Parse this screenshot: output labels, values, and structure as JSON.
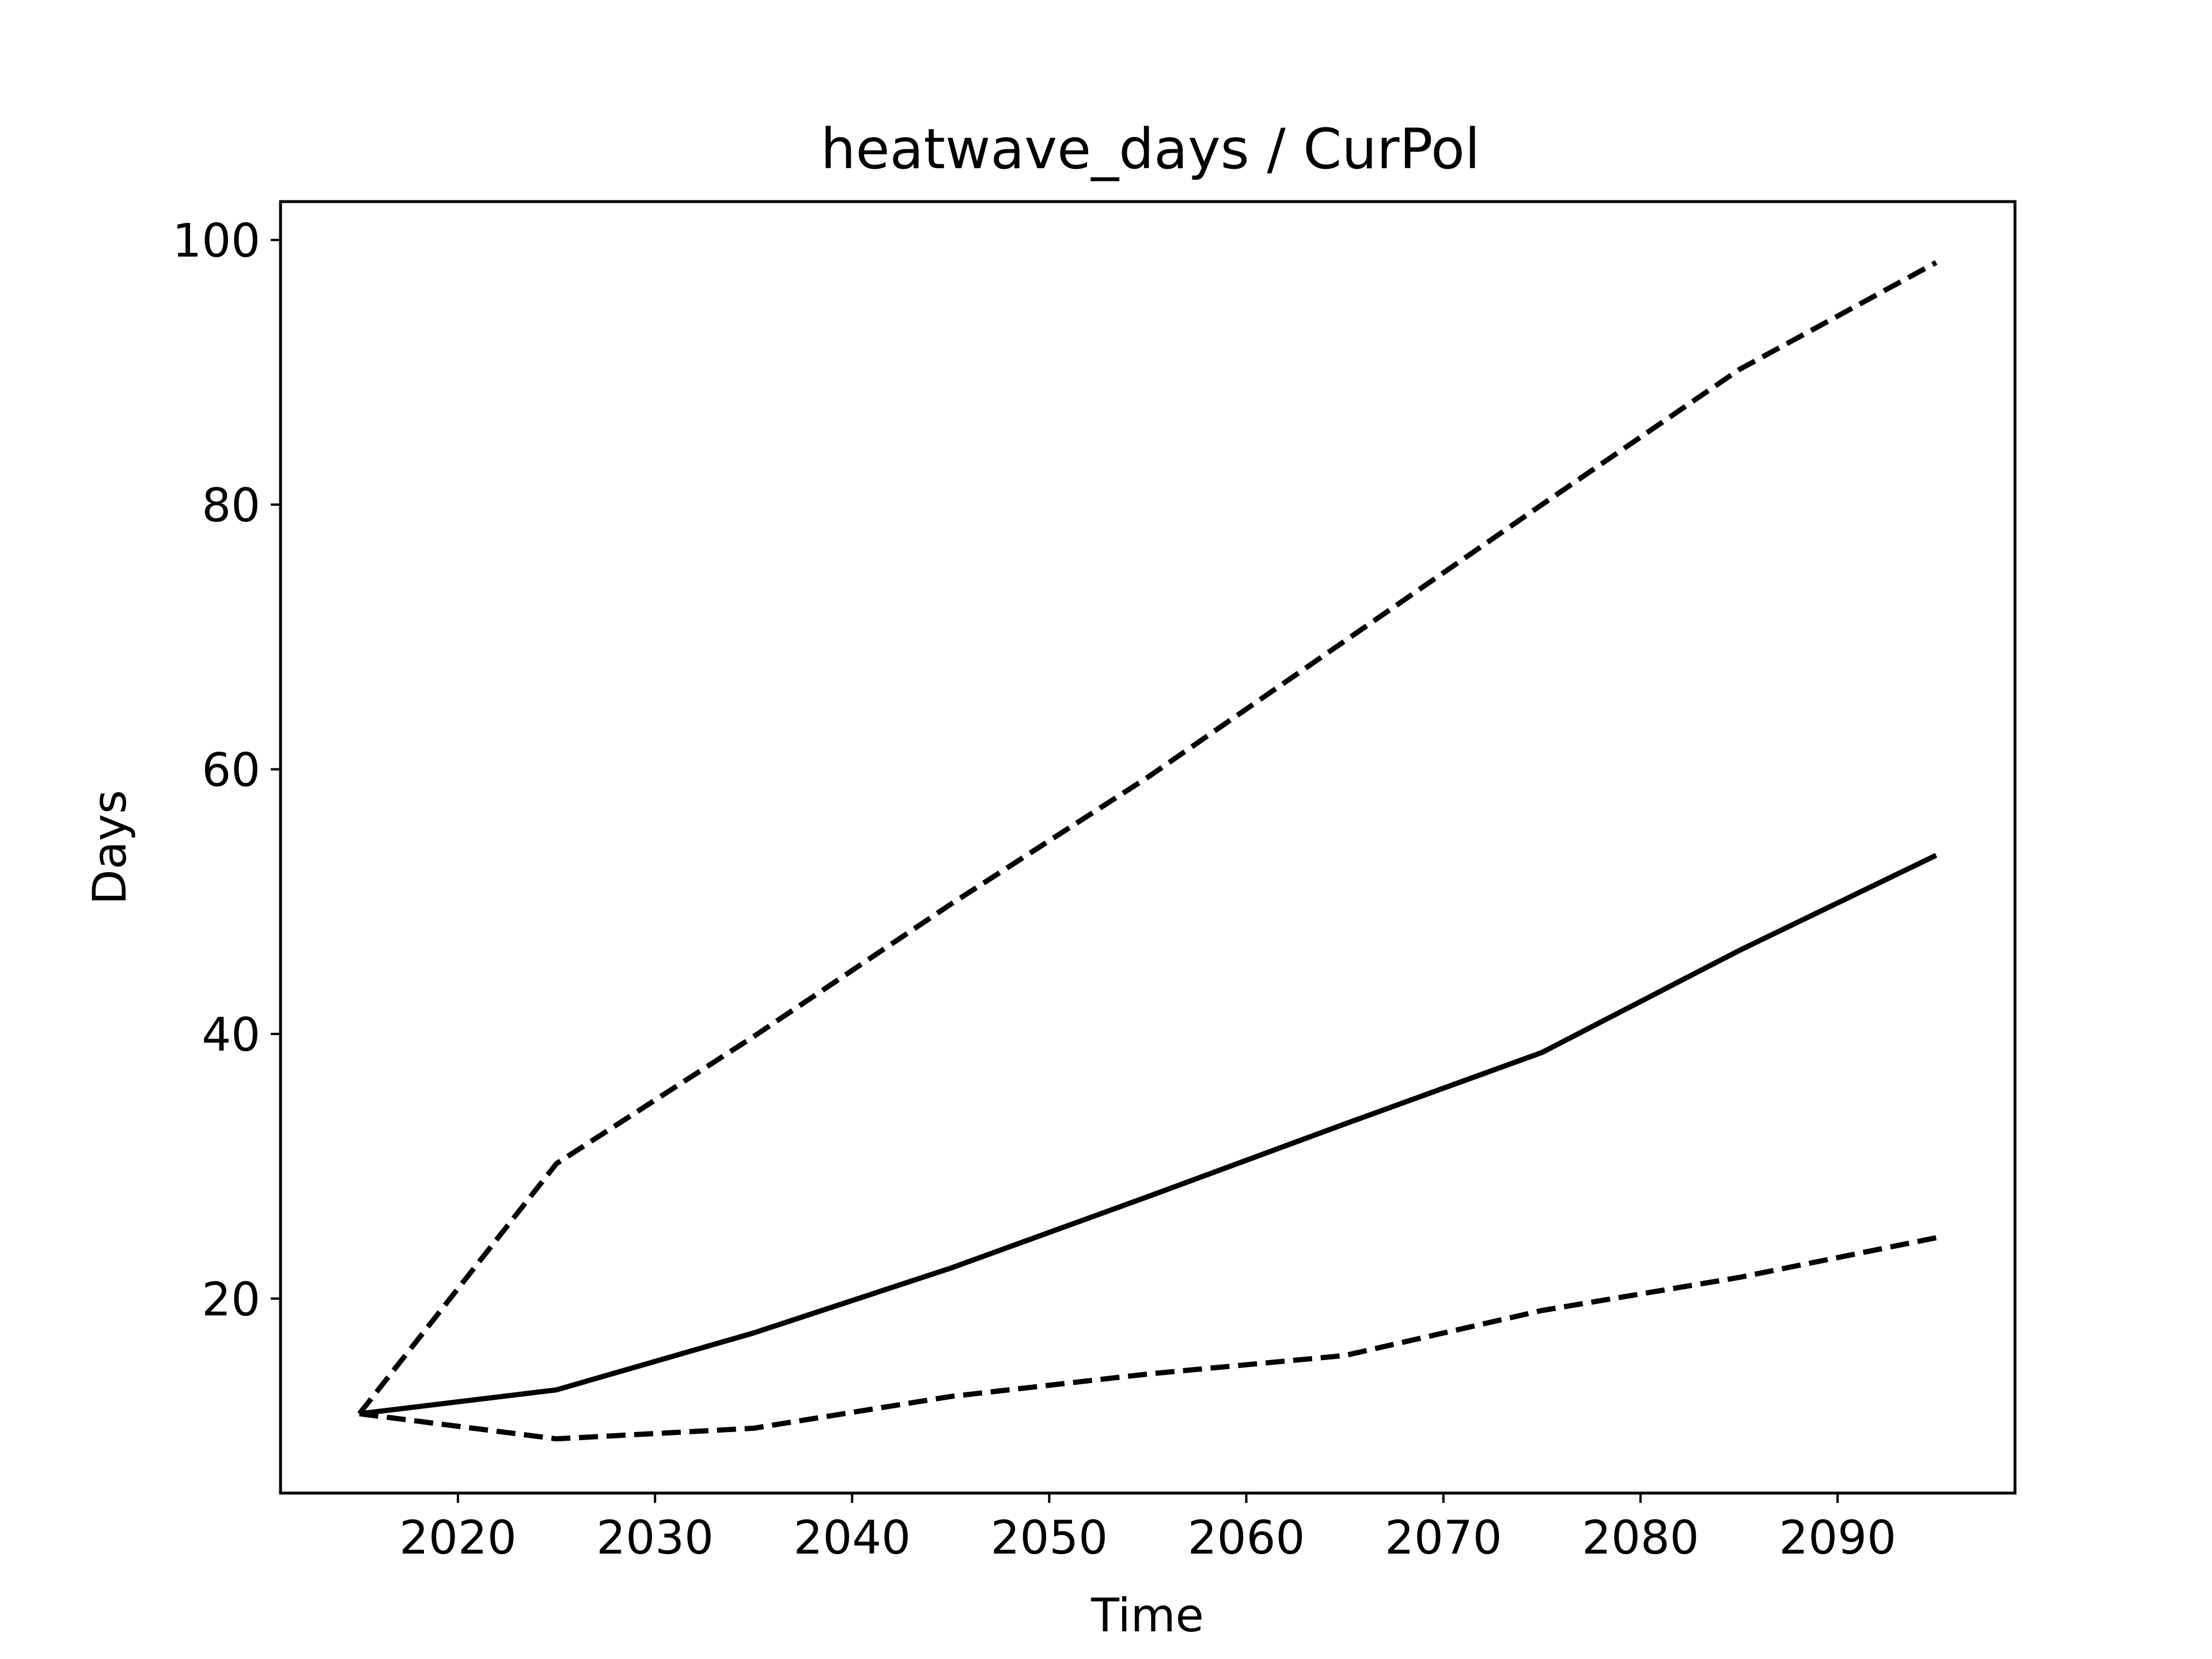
{
  "chart_data": {
    "type": "line",
    "title": "heatwave_days / CurPol",
    "xlabel": "Time",
    "ylabel": "Days",
    "xlim": [
      2011,
      2099
    ],
    "ylim": [
      5.3,
      102.9
    ],
    "xticks": [
      2020,
      2030,
      2040,
      2050,
      2060,
      2070,
      2080,
      2090
    ],
    "yticks": [
      20,
      40,
      60,
      80,
      100
    ],
    "grid": false,
    "legend": "none",
    "colors": {
      "line": "#000000",
      "frame": "#000000",
      "background": "#ffffff"
    },
    "x": [
      2015,
      2025,
      2035,
      2045,
      2055,
      2065,
      2075,
      2085,
      2095
    ],
    "series": [
      {
        "values": [
          11.3,
          13.1,
          17.4,
          22.3,
          27.7,
          33.2,
          38.6,
          46.3,
          53.5
        ],
        "dash": "solid"
      },
      {
        "values": [
          11.3,
          30.2,
          39.8,
          49.8,
          59.4,
          69.7,
          80.0,
          90.2,
          98.3
        ],
        "dash": "dashed"
      },
      {
        "values": [
          11.3,
          9.4,
          10.2,
          12.6,
          14.3,
          15.7,
          19.1,
          21.6,
          24.6
        ],
        "dash": "dashed"
      }
    ]
  }
}
